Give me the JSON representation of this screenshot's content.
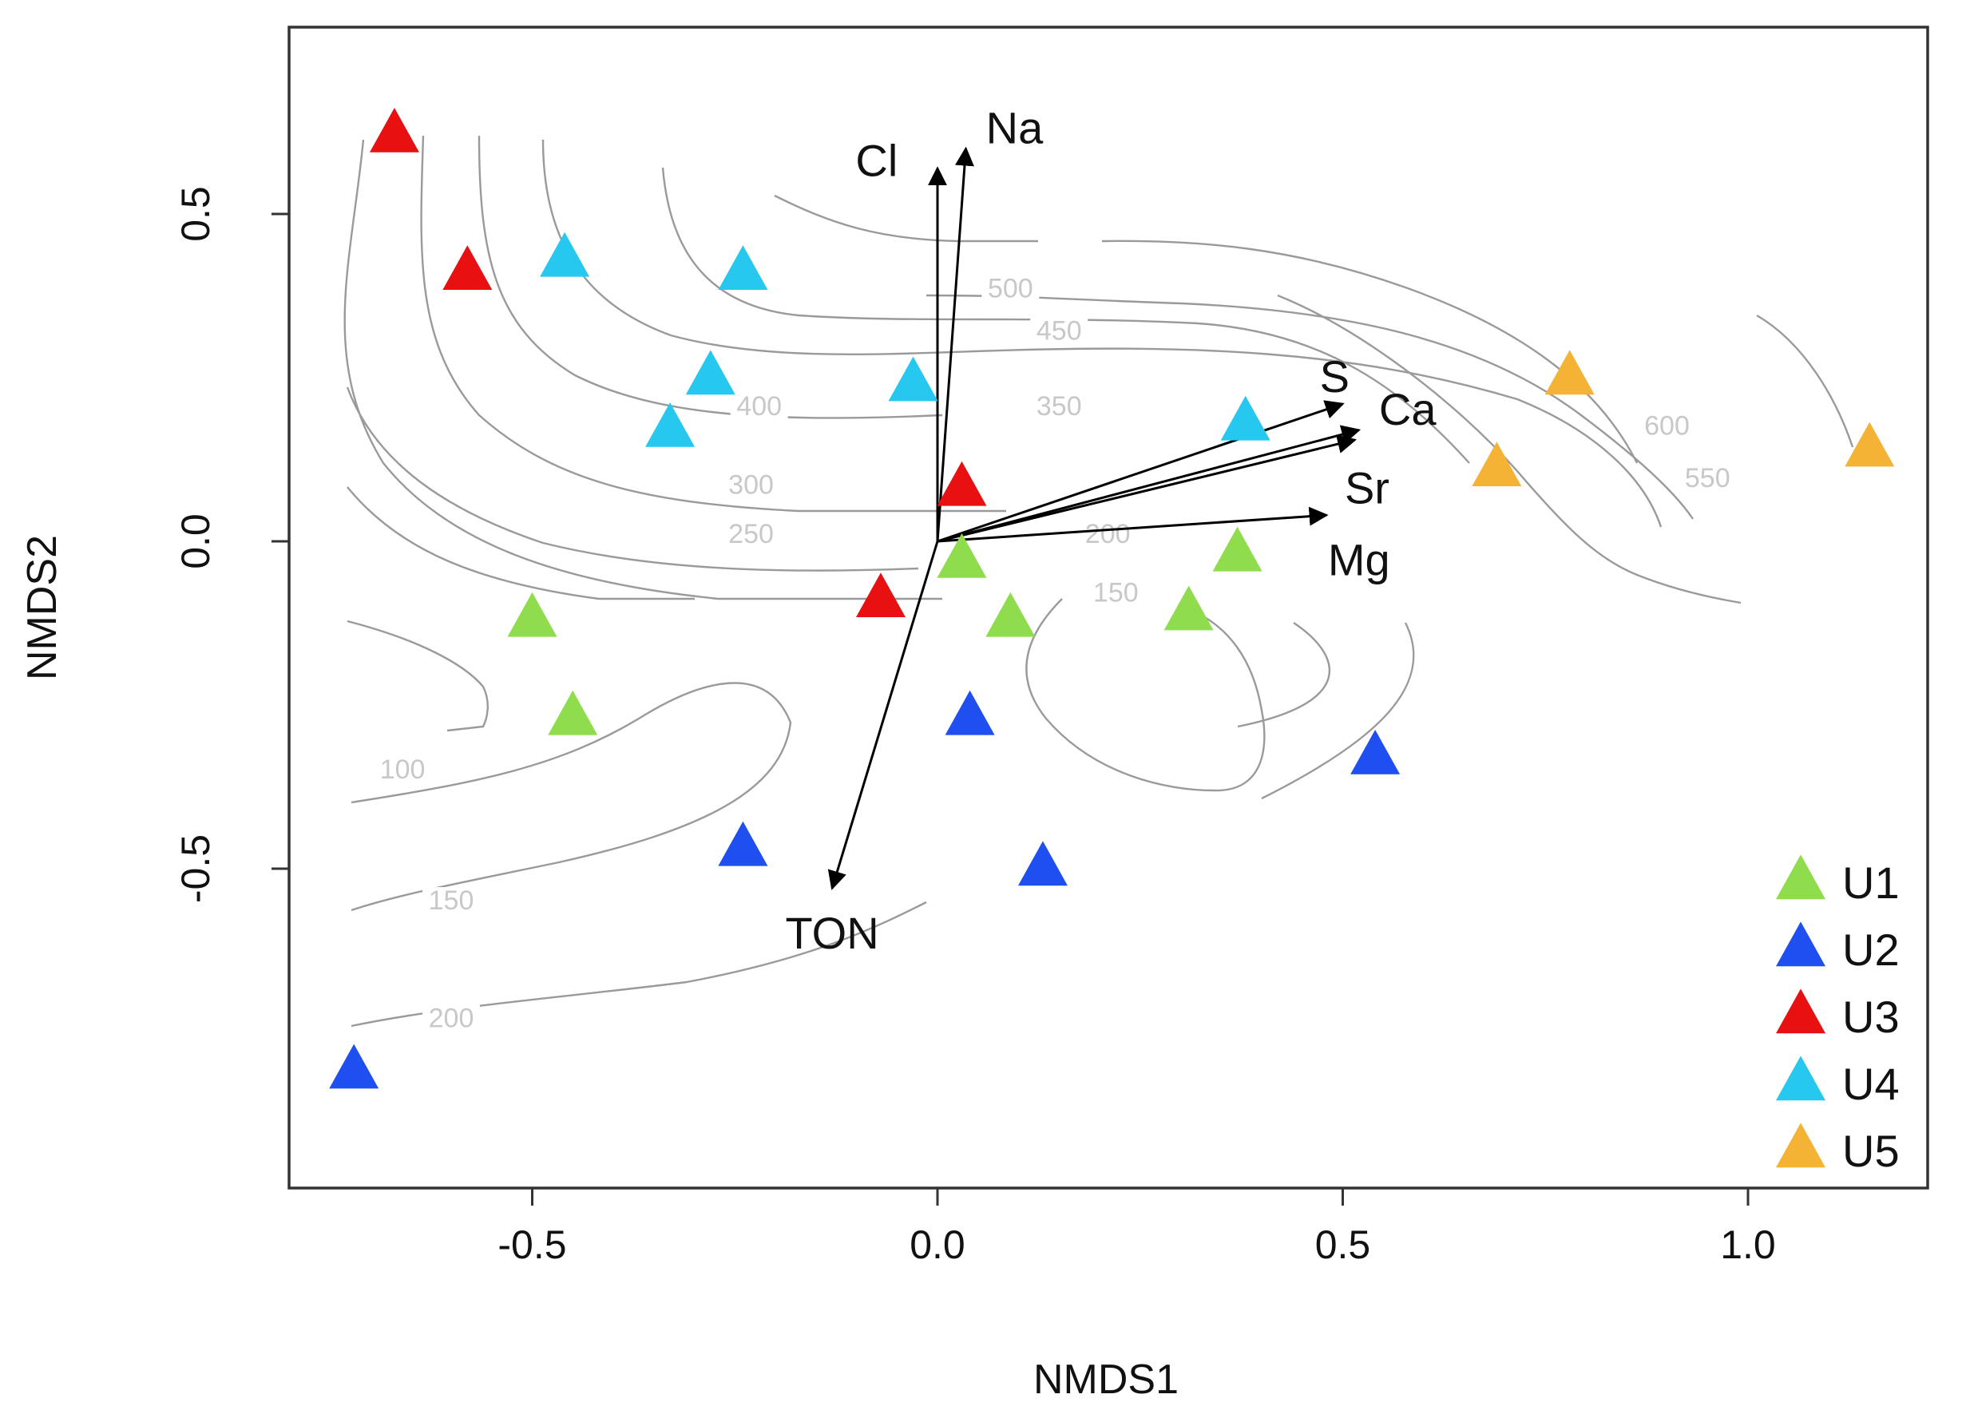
{
  "chart_data": {
    "type": "scatter",
    "xlabel": "NMDS1",
    "ylabel": "NMDS2",
    "xlim": [
      -0.8,
      1.23
    ],
    "ylim": [
      -0.98,
      0.8
    ],
    "x_ticks": [
      "-0.5",
      "0.0",
      "0.5",
      "1.0"
    ],
    "x_tick_values": [
      -0.5,
      0.0,
      0.5,
      1.0
    ],
    "y_ticks": [
      "-0.5",
      "0.0",
      "0.5"
    ],
    "y_tick_values": [
      -0.5,
      0.0,
      0.5
    ],
    "grid": false,
    "legend_position": "bottom-right",
    "series": [
      {
        "name": "U1",
        "color": "#8fdd4c",
        "points": [
          [
            -0.5,
            -0.12
          ],
          [
            -0.45,
            -0.27
          ],
          [
            0.03,
            -0.03
          ],
          [
            0.09,
            -0.12
          ],
          [
            0.31,
            -0.11
          ],
          [
            0.37,
            -0.02
          ]
        ]
      },
      {
        "name": "U2",
        "color": "#1f4ff0",
        "points": [
          [
            -0.72,
            -0.81
          ],
          [
            -0.24,
            -0.47
          ],
          [
            0.04,
            -0.27
          ],
          [
            0.13,
            -0.5
          ],
          [
            0.54,
            -0.33
          ]
        ]
      },
      {
        "name": "U3",
        "color": "#e81010",
        "points": [
          [
            -0.67,
            0.62
          ],
          [
            -0.58,
            0.41
          ],
          [
            0.03,
            0.08
          ],
          [
            -0.07,
            -0.09
          ]
        ]
      },
      {
        "name": "U4",
        "color": "#27c8f0",
        "points": [
          [
            -0.46,
            0.43
          ],
          [
            -0.24,
            0.41
          ],
          [
            -0.28,
            0.25
          ],
          [
            -0.33,
            0.17
          ],
          [
            -0.03,
            0.24
          ],
          [
            0.38,
            0.18
          ]
        ]
      },
      {
        "name": "U5",
        "color": "#f5b335",
        "points": [
          [
            0.78,
            0.25
          ],
          [
            0.69,
            0.11
          ],
          [
            1.15,
            0.14
          ]
        ]
      }
    ],
    "vectors": [
      {
        "name": "Cl",
        "x": 0.0,
        "y": 0.57,
        "label_x": -0.075,
        "label_y": 0.58
      },
      {
        "name": "Na",
        "x": 0.035,
        "y": 0.6,
        "label_x": 0.095,
        "label_y": 0.63
      },
      {
        "name": "S",
        "x": 0.5,
        "y": 0.21,
        "label_x": 0.49,
        "label_y": 0.25
      },
      {
        "name": "Ca",
        "x": 0.52,
        "y": 0.17,
        "label_x": 0.58,
        "label_y": 0.2
      },
      {
        "name": "Sr",
        "x": 0.515,
        "y": 0.155,
        "label_x": 0.53,
        "label_y": 0.08
      },
      {
        "name": "Mg",
        "x": 0.48,
        "y": 0.04,
        "label_x": 0.52,
        "label_y": -0.03
      },
      {
        "name": "TON",
        "x": -0.13,
        "y": -0.53,
        "label_x": -0.13,
        "label_y": -0.6
      }
    ],
    "contour_labels": [
      {
        "text": "500",
        "x": 0.09,
        "y": 0.38
      },
      {
        "text": "450",
        "x": 0.15,
        "y": 0.315
      },
      {
        "text": "400",
        "x": -0.22,
        "y": 0.2
      },
      {
        "text": "350",
        "x": 0.15,
        "y": 0.2
      },
      {
        "text": "300",
        "x": -0.23,
        "y": 0.08
      },
      {
        "text": "250",
        "x": -0.23,
        "y": 0.005
      },
      {
        "text": "200",
        "x": 0.21,
        "y": 0.005
      },
      {
        "text": "150",
        "x": 0.22,
        "y": -0.085
      },
      {
        "text": "100",
        "x": -0.66,
        "y": -0.355
      },
      {
        "text": "150",
        "x": -0.6,
        "y": -0.555
      },
      {
        "text": "200",
        "x": -0.6,
        "y": -0.735
      },
      {
        "text": "600",
        "x": 0.9,
        "y": 0.17
      },
      {
        "text": "550",
        "x": 0.95,
        "y": 0.09
      }
    ]
  }
}
